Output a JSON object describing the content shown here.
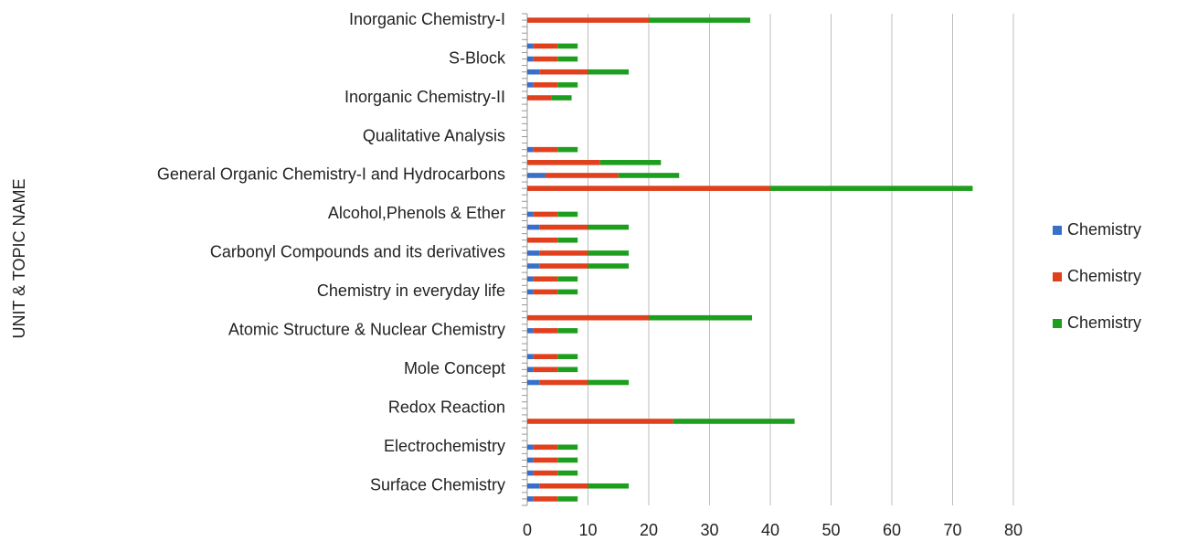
{
  "chart_data": {
    "type": "stacked_barh",
    "y_label": "UNIT & TOPIC NAME",
    "categories": [
      "Inorganic Chemistry-I",
      null,
      null,
      "S-Block",
      null,
      null,
      "Inorganic Chemistry-II",
      null,
      null,
      "Qualitative Analysis",
      null,
      null,
      "General Organic Chemistry-I and Hydrocarbons",
      null,
      null,
      "Alcohol,Phenols & Ether ",
      null,
      null,
      "Carbonyl Compounds and its derivatives",
      null,
      null,
      "Chemistry in everyday life",
      null,
      null,
      "Atomic Structure & Nuclear Chemistry",
      null,
      null,
      "Mole Concept",
      null,
      null,
      "Redox Reaction",
      null,
      null,
      "Electrochemistry",
      null,
      null,
      "Surface Chemistry",
      null
    ],
    "series": [
      {
        "name": "Chemistry",
        "color": "#3a6fc9",
        "values": [
          0,
          null,
          1,
          1,
          2,
          1,
          0,
          null,
          null,
          null,
          1,
          0,
          3,
          0,
          null,
          1,
          2,
          0,
          2,
          2,
          1,
          1,
          null,
          0,
          1,
          null,
          1,
          1,
          2,
          null,
          null,
          0,
          null,
          1,
          1,
          1,
          2,
          1
        ]
      },
      {
        "name": "Chemistry",
        "color": "#e0401c",
        "values": [
          20,
          null,
          4,
          4,
          8,
          4,
          4,
          null,
          null,
          null,
          4,
          12,
          12,
          40,
          null,
          4,
          8,
          5,
          8,
          8,
          4,
          4,
          null,
          20,
          4,
          null,
          4,
          4,
          8,
          null,
          null,
          24,
          null,
          4,
          4,
          4,
          8,
          4
        ]
      },
      {
        "name": "Chemistry",
        "color": "#1e9e1e",
        "values": [
          16.7,
          null,
          3.3,
          3.3,
          6.7,
          3.3,
          3.3,
          null,
          null,
          null,
          3.3,
          10,
          10,
          33.3,
          null,
          3.3,
          6.7,
          3.3,
          6.7,
          6.7,
          3.3,
          3.3,
          null,
          17,
          3.3,
          null,
          3.3,
          3.3,
          6.7,
          null,
          null,
          20,
          null,
          3.3,
          3.3,
          3.3,
          6.7,
          3.3
        ]
      }
    ],
    "xlim": [
      0,
      80
    ],
    "xticks": [
      0,
      10,
      20,
      30,
      40,
      50,
      60,
      70,
      80
    ],
    "grid": true,
    "legend": "right"
  }
}
